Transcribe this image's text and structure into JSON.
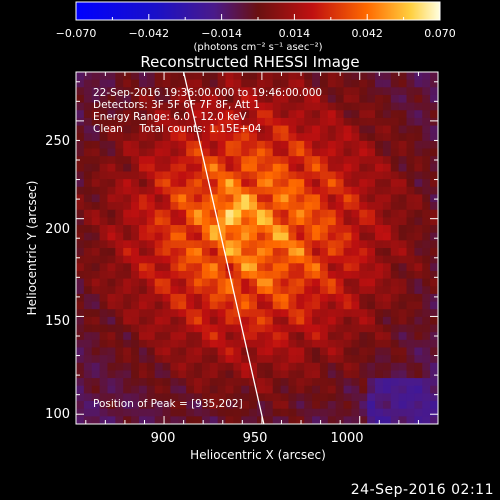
{
  "colorbar": {
    "ticks": [
      "−0.070",
      "−0.042",
      "−0.014",
      "0.014",
      "0.042",
      "0.070"
    ],
    "range": [
      -0.07,
      0.07
    ],
    "unit_label": "(photons cm⁻² s⁻¹ asec⁻²)"
  },
  "chart_data": {
    "type": "heatmap",
    "title": "Reconstructed RHESSI Image",
    "xlabel": "Heliocentric X (arcsec)",
    "ylabel": "Heliocentric Y (arcsec)",
    "xlim": [
      855,
      1040
    ],
    "ylim": [
      95,
      275
    ],
    "xticks": [
      900,
      950,
      1000
    ],
    "yticks": [
      100,
      150,
      200,
      250
    ],
    "peak_position": [
      935,
      202
    ],
    "annotations": [
      "22-Sep-2016 19:36:00.000 to 19:46:00.000",
      "Detectors: 3F 5F 6F 7F 8F, Att 1",
      "Energy Range: 6.0 - 12.0 keV",
      "Clean     Total counts: 1.15E+04",
      "Position of Peak = [935,202]"
    ],
    "limb_line": {
      "x": [
        910,
        951
      ],
      "y": [
        275,
        95
      ]
    }
  },
  "footer": {
    "timestamp": "24-Sep-2016 02:11"
  }
}
